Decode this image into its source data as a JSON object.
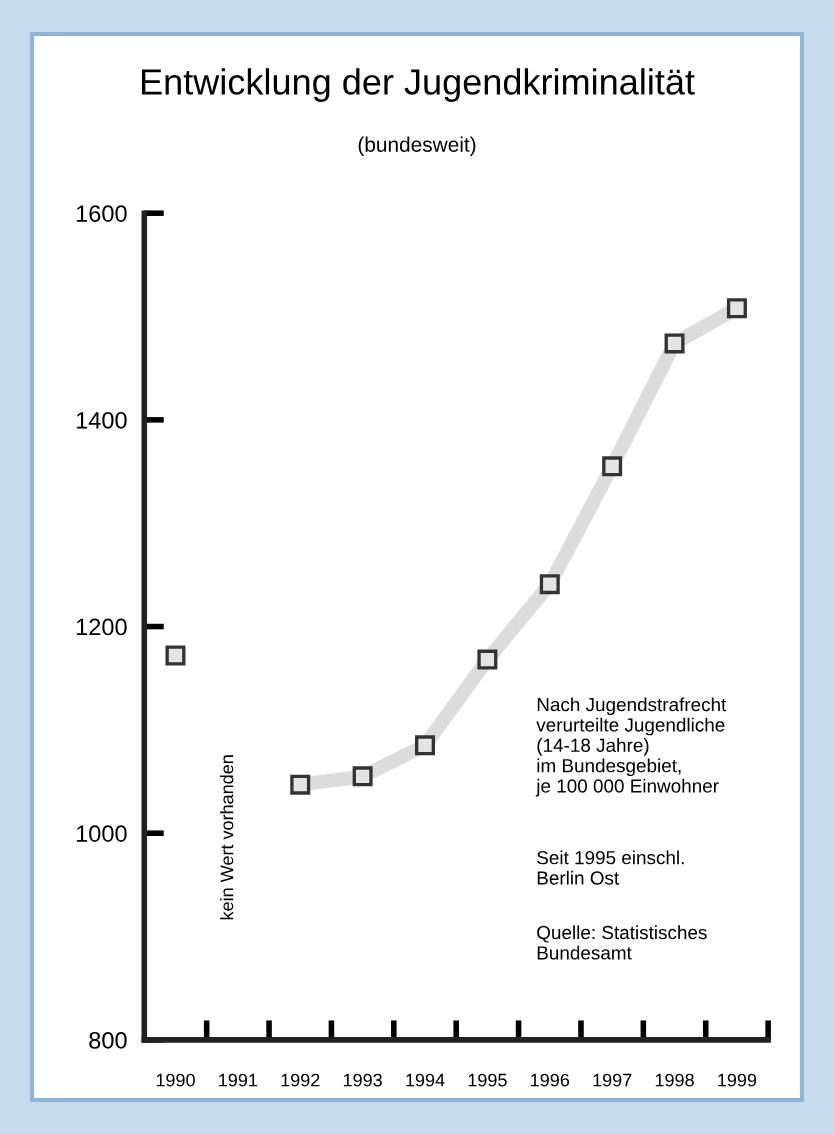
{
  "chart_data": {
    "type": "line",
    "title": "Entwicklung der Jugendkriminalität",
    "subtitle": "(bundesweit)",
    "categories": [
      "1990",
      "1991",
      "1992",
      "1993",
      "1994",
      "1995",
      "1996",
      "1997",
      "1998",
      "1999"
    ],
    "series": [
      {
        "color": "#dcdcdc",
        "values": [
          1172,
          null,
          1047,
          1055,
          1085,
          1168,
          1241,
          1355,
          1474,
          1508
        ]
      }
    ],
    "ylim": [
      800,
      1600
    ],
    "yticks": [
      800,
      1000,
      1200,
      1400,
      1600
    ],
    "grid": false,
    "marker": "square",
    "line_style": "solid",
    "annotations": [
      "kein Wert vorhanden",
      "Nach Jugendstrafrecht\nverurteilte Jugendliche\n(14-18 Jahre)\nim Bundesgebiet,\nje 100 000 Einwohner",
      "Seit 1995 einschl.\nBerlin Ost",
      "Quelle: Statistisches\nBundesamt"
    ]
  }
}
